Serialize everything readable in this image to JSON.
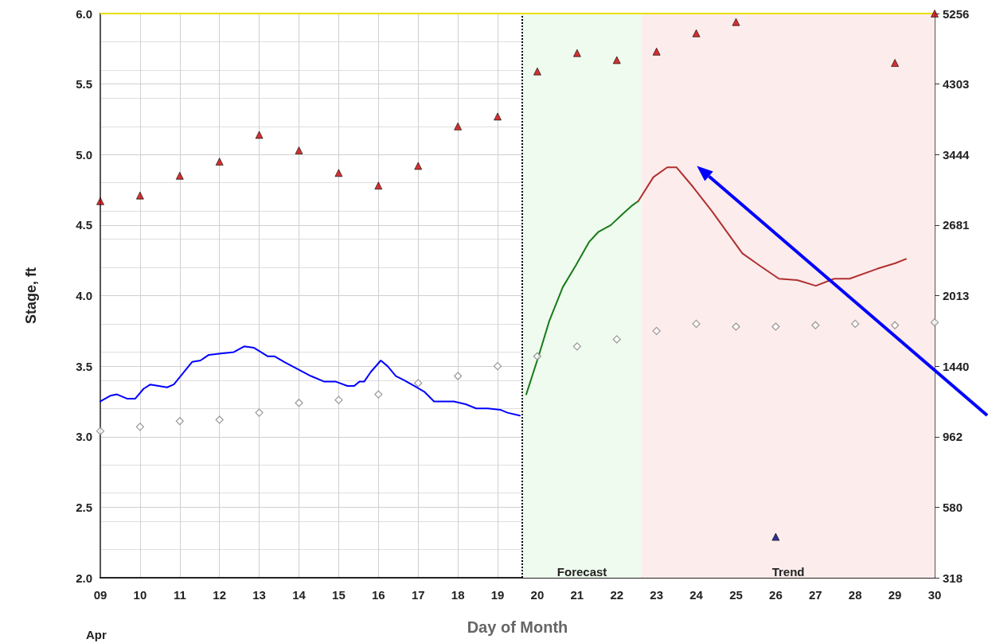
{
  "chart_data": {
    "type": "line",
    "xlabel": "Day of Month",
    "ylabel": "Stage, ft",
    "annotations": [
      "Apr"
    ],
    "xlim": [
      9,
      30
    ],
    "xticks": [
      {
        "value": 9,
        "label": "09"
      },
      10,
      11,
      12,
      13,
      14,
      15,
      16,
      17,
      18,
      19,
      20,
      21,
      22,
      23,
      24,
      25,
      26,
      27,
      28,
      29,
      30
    ],
    "ylim": [
      2,
      6
    ],
    "yticks": [
      {
        "value": 2,
        "label": "2.0"
      },
      2.5,
      {
        "value": 3,
        "label": "3.0"
      },
      3.5,
      {
        "value": 4,
        "label": "4.0"
      },
      4.5,
      {
        "value": 5,
        "label": "5.0"
      },
      5.5,
      {
        "value": 6,
        "label": "6.0"
      }
    ],
    "y2_categories": [
      "5256",
      "4303",
      "3444",
      "2681",
      "2013",
      "1440",
      "962",
      "580",
      "318"
    ],
    "grid": true,
    "series": [
      {
        "color": "#0000ff",
        "x": [
          9.0,
          9.25,
          9.42,
          9.67,
          9.88,
          10.09,
          10.26,
          10.47,
          10.68,
          10.85,
          11.31,
          11.52,
          11.73,
          12.03,
          12.36,
          12.62,
          12.87,
          13.21,
          13.38,
          13.63,
          13.96,
          14.3,
          14.64,
          14.93,
          15.22,
          15.39,
          15.52,
          15.64,
          15.81,
          16.06,
          16.23,
          16.44,
          16.65,
          16.9,
          17.15,
          17.4,
          17.61,
          17.9,
          18.2,
          18.46,
          18.75,
          19.08,
          19.25,
          19.56
        ],
        "values": [
          3.25,
          3.29,
          3.3,
          3.27,
          3.27,
          3.34,
          3.37,
          3.36,
          3.35,
          3.37,
          3.53,
          3.54,
          3.58,
          3.59,
          3.6,
          3.64,
          3.63,
          3.57,
          3.57,
          3.53,
          3.48,
          3.43,
          3.39,
          3.39,
          3.36,
          3.36,
          3.39,
          3.39,
          3.46,
          3.54,
          3.5,
          3.43,
          3.4,
          3.36,
          3.32,
          3.25,
          3.25,
          3.25,
          3.23,
          3.2,
          3.2,
          3.19,
          3.17,
          3.15
        ],
        "marker": "none"
      },
      {
        "color": "#1a7a1a",
        "x": [
          19.72,
          20.03,
          20.3,
          20.64,
          20.96,
          21.3,
          21.53,
          21.85,
          22.15,
          22.39,
          22.54
        ],
        "values": [
          3.3,
          3.57,
          3.82,
          4.06,
          4.21,
          4.38,
          4.45,
          4.5,
          4.58,
          4.64,
          4.67
        ],
        "marker": "none"
      },
      {
        "color": "#b03030",
        "x": [
          22.54,
          22.92,
          23.27,
          23.5,
          23.92,
          24.39,
          25.16,
          25.61,
          26.08,
          26.54,
          27.01,
          27.47,
          27.86,
          28.55,
          29.01,
          29.28
        ],
        "values": [
          4.67,
          4.84,
          4.91,
          4.91,
          4.77,
          4.6,
          4.3,
          4.21,
          4.12,
          4.11,
          4.07,
          4.12,
          4.12,
          4.19,
          4.23,
          4.26
        ],
        "marker": "none"
      },
      {
        "type": "scatter",
        "color": "#cc0000",
        "marker": "triangle",
        "x": [
          9,
          10,
          11,
          12,
          13,
          14,
          15,
          16,
          17,
          18,
          19,
          20,
          21,
          22,
          23,
          24,
          25,
          29,
          30
        ],
        "values": [
          4.67,
          4.71,
          4.85,
          4.95,
          5.14,
          5.03,
          4.87,
          4.78,
          4.92,
          5.2,
          5.27,
          5.59,
          5.72,
          5.67,
          5.73,
          5.86,
          5.94,
          5.65,
          6.0
        ]
      },
      {
        "type": "scatter",
        "color": "#808080",
        "marker": "diamond",
        "x": [
          9,
          10,
          11,
          12,
          13,
          14,
          15,
          16,
          17,
          18,
          19,
          20,
          21,
          22,
          23,
          24,
          25,
          26,
          27,
          28,
          29,
          30
        ],
        "values": [
          3.04,
          3.07,
          3.11,
          3.12,
          3.17,
          3.24,
          3.26,
          3.3,
          3.38,
          3.43,
          3.5,
          3.57,
          3.64,
          3.69,
          3.75,
          3.8,
          3.78,
          3.78,
          3.79,
          3.8,
          3.79,
          3.81
        ]
      },
      {
        "type": "scatter",
        "color": "#000080",
        "marker": "triangle",
        "x": [
          26
        ],
        "values": [
          2.29
        ]
      }
    ],
    "ref_lines": [
      {
        "axis": "x",
        "value": 19.62,
        "color": "#000000",
        "line_style": "dotted"
      },
      {
        "axis": "y",
        "value": 6.0,
        "color": "#e8e000",
        "line_style": "solid"
      }
    ],
    "bands": [
      {
        "axis": "x",
        "from": 19.62,
        "to": 22.63,
        "label": "Forecast",
        "color": "#eefbee"
      },
      {
        "axis": "x",
        "from": 22.63,
        "to": 30,
        "label": "Trend",
        "color": "#fcecec"
      }
    ]
  }
}
